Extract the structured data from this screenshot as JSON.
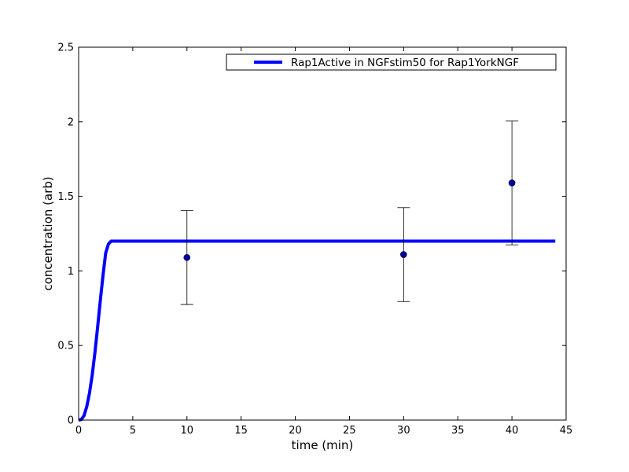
{
  "chart_data": {
    "type": "line",
    "xlabel": "time (min)",
    "ylabel": "concentration (arb)",
    "xlim": [
      0,
      45
    ],
    "ylim": [
      0,
      2.5
    ],
    "x_ticks": [
      "0",
      "5",
      "10",
      "15",
      "20",
      "25",
      "30",
      "35",
      "40",
      "45"
    ],
    "y_ticks": [
      "0",
      "0.5",
      "1",
      "1.5",
      "2",
      "2.5"
    ],
    "grid": false,
    "legend_position": "top-right",
    "series": [
      {
        "name": "Rap1Active in NGFstim50 for Rap1YorkNGF",
        "color": "#0000ff",
        "style": "line",
        "x": [
          0,
          0.25,
          0.5,
          0.75,
          1.0,
          1.25,
          1.5,
          1.75,
          2.0,
          2.25,
          2.5,
          2.75,
          3.0,
          3.25,
          3.5,
          5,
          10,
          20,
          30,
          40,
          44
        ],
        "y": [
          0,
          0.004,
          0.03,
          0.09,
          0.18,
          0.3,
          0.45,
          0.62,
          0.8,
          0.97,
          1.12,
          1.18,
          1.2,
          1.2,
          1.2,
          1.2,
          1.2,
          1.2,
          1.2,
          1.2,
          1.2
        ]
      },
      {
        "name": "",
        "color": "#0000aa",
        "style": "errorbar",
        "x": [
          10,
          30,
          40
        ],
        "y": [
          1.09,
          1.11,
          1.59
        ],
        "yerr": [
          0.315,
          0.315,
          0.415
        ]
      }
    ]
  }
}
